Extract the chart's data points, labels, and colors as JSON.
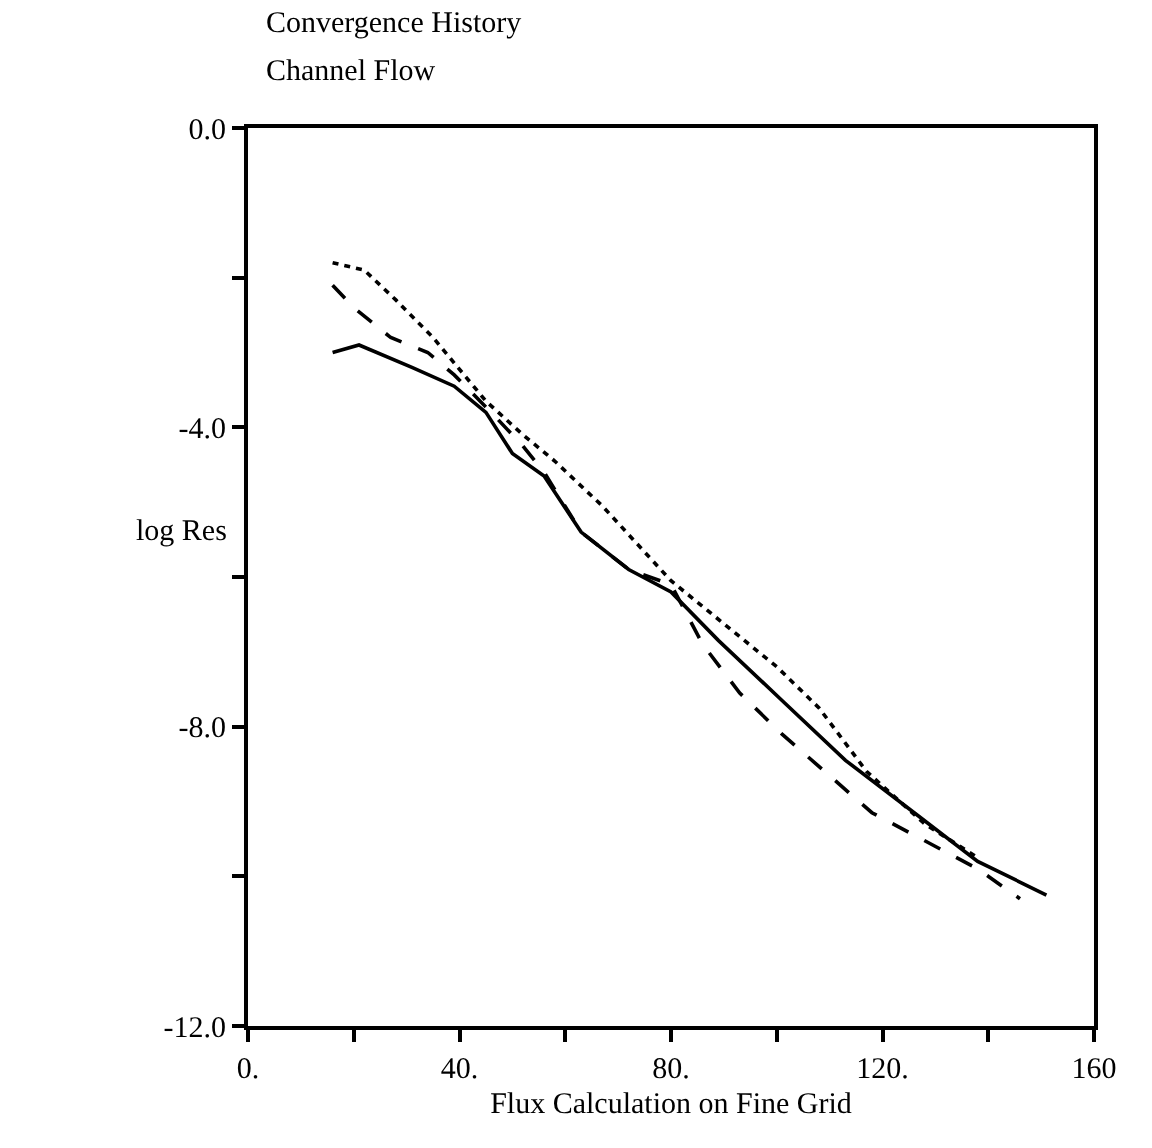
{
  "chart_data": {
    "type": "line",
    "title": "Convergence History",
    "subtitle": "Channel Flow",
    "xlabel": "Flux Calculation on Fine Grid",
    "ylabel": "log Res",
    "xlim": [
      0,
      160
    ],
    "xticks": [
      {
        "value": 0,
        "label": "0."
      },
      {
        "value": 20,
        "label": null
      },
      {
        "value": 40,
        "label": "40."
      },
      {
        "value": 60,
        "label": null
      },
      {
        "value": 80,
        "label": "80."
      },
      {
        "value": 100,
        "label": null
      },
      {
        "value": 120,
        "label": "120."
      },
      {
        "value": 140,
        "label": null
      },
      160
    ],
    "ylim": [
      -12,
      0
    ],
    "yticks": [
      {
        "value": -12,
        "label": "-12.0"
      },
      {
        "value": -10,
        "label": null
      },
      {
        "value": -8,
        "label": "-8.0"
      },
      {
        "value": -6,
        "label": null
      },
      {
        "value": -4,
        "label": "-4.0"
      },
      {
        "value": -2,
        "label": null
      },
      {
        "value": 0,
        "label": "0.0"
      }
    ],
    "series": [
      {
        "color": "#000000",
        "line_style": "solid",
        "x": [
          16,
          21,
          31,
          39,
          45,
          50,
          56,
          63,
          72,
          80,
          89,
          101,
          113,
          126,
          138,
          151
        ],
        "values": [
          -3.0,
          -2.9,
          -3.2,
          -3.45,
          -3.8,
          -4.35,
          -4.65,
          -5.4,
          -5.9,
          -6.2,
          -6.85,
          -7.65,
          -8.45,
          -9.15,
          -9.8,
          -10.25
        ]
      },
      {
        "color": "#000000",
        "line_style": "dashed",
        "x": [
          16,
          20,
          27,
          34,
          39,
          46,
          52,
          56,
          63,
          72,
          80,
          86,
          93,
          101,
          118,
          138,
          146
        ],
        "values": [
          -2.1,
          -2.4,
          -2.8,
          -3.0,
          -3.3,
          -3.8,
          -4.25,
          -4.6,
          -5.4,
          -5.9,
          -6.1,
          -6.9,
          -7.55,
          -8.1,
          -9.15,
          -9.9,
          -10.3
        ]
      },
      {
        "color": "#000000",
        "line_style": "dotted",
        "x": [
          16,
          22,
          28,
          35,
          45,
          52,
          58,
          67,
          80,
          100,
          108,
          117,
          128,
          138
        ],
        "values": [
          -1.8,
          -1.9,
          -2.3,
          -2.8,
          -3.65,
          -4.1,
          -4.45,
          -5.05,
          -6.05,
          -7.2,
          -7.75,
          -8.6,
          -9.3,
          -9.75
        ]
      }
    ]
  }
}
